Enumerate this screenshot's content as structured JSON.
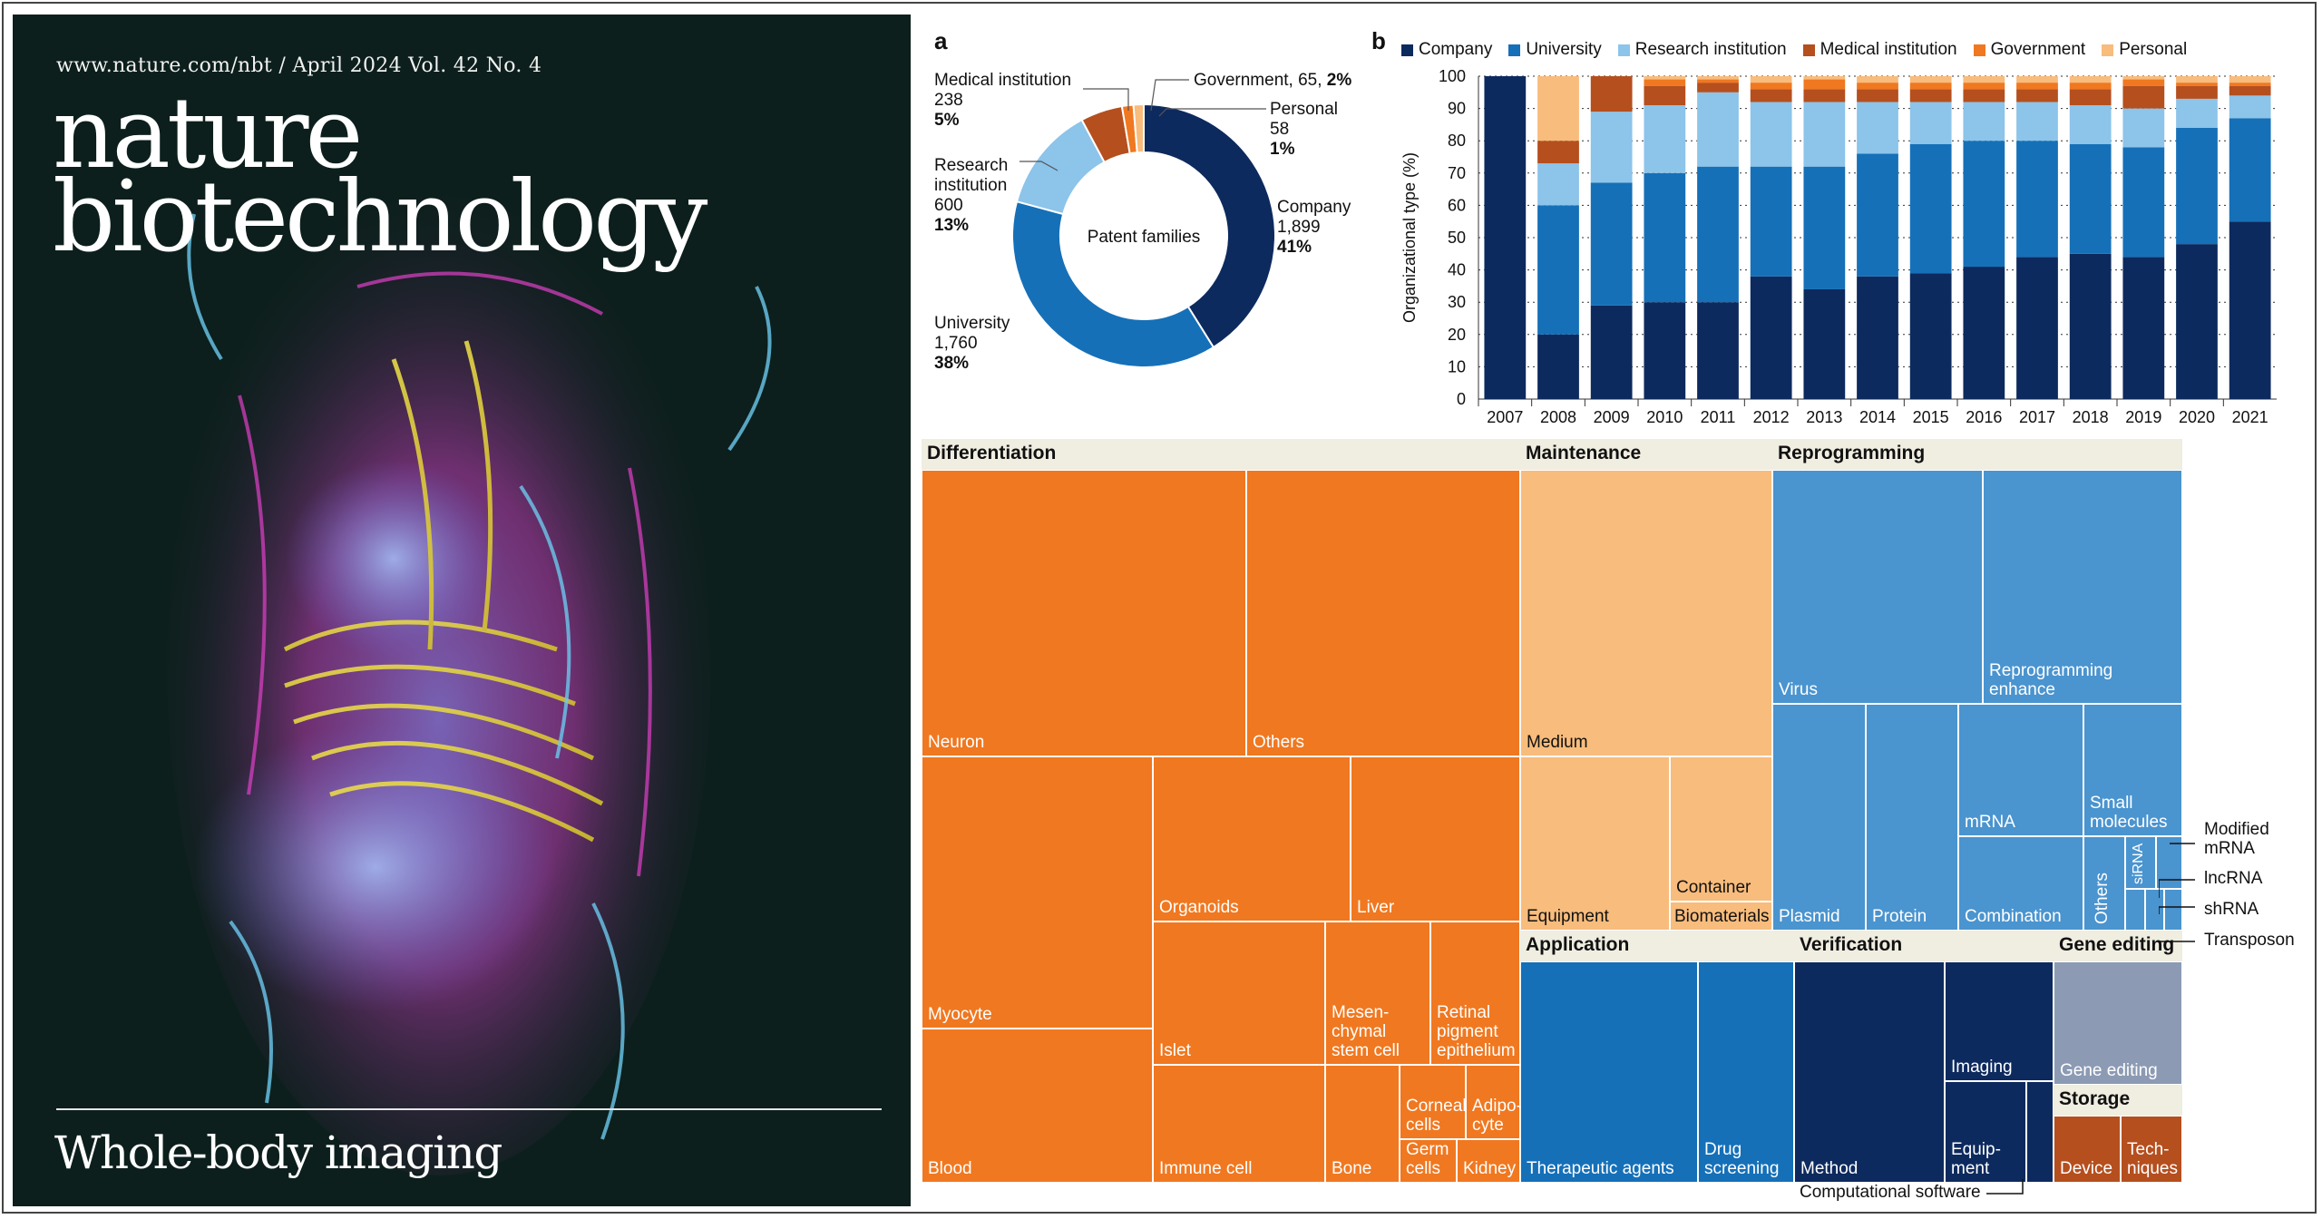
{
  "cover": {
    "issue_line": "www.nature.com/nbt / April 2024 Vol. 42 No. 4",
    "title_line1": "nature",
    "title_line2": "biotechnology",
    "story": "Whole-body imaging"
  },
  "chart_data": [
    {
      "type": "pie",
      "panel": "a",
      "center_label": "Patent families",
      "slices": [
        {
          "name": "Company",
          "value": 1899,
          "percent": "41%",
          "value_label": "1,899",
          "color": "#0d2a5e"
        },
        {
          "name": "University",
          "value": 1760,
          "percent": "38%",
          "value_label": "1,760",
          "color": "#1570b8"
        },
        {
          "name": "Research institution",
          "value": 600,
          "percent": "13%",
          "value_label": "600",
          "color": "#8cc4ea"
        },
        {
          "name": "Medical institution",
          "value": 238,
          "percent": "5%",
          "value_label": "238",
          "color": "#b54f1e"
        },
        {
          "name": "Government",
          "value": 65,
          "percent": "2%",
          "value_label": "65",
          "color": "#f07820"
        },
        {
          "name": "Personal",
          "value": 58,
          "percent": "1%",
          "value_label": "58",
          "color": "#f8bc7c"
        }
      ],
      "labels": {
        "company": [
          "Company",
          "1,899",
          "41%"
        ],
        "university": [
          "University",
          "1,760",
          "38%"
        ],
        "research": [
          "Research",
          "institution",
          "600",
          "13%"
        ],
        "medical": [
          "Medical institution",
          "238",
          "5%"
        ],
        "government": [
          "Government, 65, ",
          "2%"
        ],
        "personal": [
          "Personal",
          "58",
          "1%"
        ]
      }
    },
    {
      "type": "bar",
      "stacked": true,
      "panel": "b",
      "ylabel": "Organizational type (%)",
      "ylim": [
        0,
        100
      ],
      "yticks": [
        0,
        10,
        20,
        30,
        40,
        50,
        60,
        70,
        80,
        90,
        100
      ],
      "grid": "dotted horizontal",
      "legend_position": "top",
      "categories": [
        "2007",
        "2008",
        "2009",
        "2010",
        "2011",
        "2012",
        "2013",
        "2014",
        "2015",
        "2016",
        "2017",
        "2018",
        "2019",
        "2020",
        "2021"
      ],
      "series": [
        {
          "name": "Company",
          "color": "#0d2a5e",
          "values": [
            100,
            20,
            29,
            30,
            30,
            38,
            34,
            38,
            39,
            41,
            44,
            45,
            44,
            48,
            55
          ]
        },
        {
          "name": "University",
          "color": "#1570b8",
          "values": [
            0,
            40,
            38,
            40,
            42,
            34,
            38,
            38,
            40,
            39,
            36,
            34,
            34,
            36,
            32
          ]
        },
        {
          "name": "Research institution",
          "color": "#8cc4ea",
          "values": [
            0,
            13,
            22,
            21,
            23,
            20,
            20,
            16,
            13,
            12,
            12,
            12,
            12,
            9,
            7
          ]
        },
        {
          "name": "Medical institution",
          "color": "#b54f1e",
          "values": [
            0,
            7,
            11,
            6,
            3,
            4,
            4,
            4,
            4,
            4,
            4,
            5,
            7,
            4,
            3
          ]
        },
        {
          "name": "Government",
          "color": "#f07820",
          "values": [
            0,
            0,
            0,
            2,
            1,
            2,
            3,
            2,
            2,
            2,
            2,
            2,
            2,
            1,
            1
          ]
        },
        {
          "name": "Personal",
          "color": "#f8bc7c",
          "values": [
            0,
            20,
            0,
            1,
            1,
            2,
            1,
            2,
            2,
            2,
            2,
            2,
            1,
            2,
            2
          ]
        }
      ]
    },
    {
      "type": "treemap",
      "groups": [
        {
          "name": "Differentiation",
          "color": "#f07820",
          "items": [
            "Neuron",
            "Others",
            "Myocyte",
            "Organoids",
            "Liver",
            "Islet",
            "Mesen-chymal stem cell",
            "Retinal pigment epithelium",
            "Blood",
            "Immune cell",
            "Bone",
            "Corneal cells",
            "Adipo-cyte",
            "Germ cells",
            "Kidney"
          ]
        },
        {
          "name": "Maintenance",
          "color": "#f8bc7c",
          "items": [
            "Medium",
            "Equipment",
            "Container",
            "Biomaterials"
          ]
        },
        {
          "name": "Reprogramming",
          "color": "#4a94cf",
          "items": [
            "Virus",
            "Reprogramming enhance",
            "Plasmid",
            "Protein",
            "mRNA",
            "Small molecules",
            "Combination",
            "Others",
            "siRNA",
            "Modified mRNA",
            "lncRNA",
            "shRNA",
            "Transposon"
          ]
        },
        {
          "name": "Application",
          "color": "#1570b8",
          "items": [
            "Therapeutic agents",
            "Drug screening"
          ]
        },
        {
          "name": "Verification",
          "color": "#0d2a5e",
          "items": [
            "Method",
            "Imaging",
            "Equip-ment",
            "Computational software"
          ]
        },
        {
          "name": "Gene editing",
          "color": "#8c9ab4",
          "items": [
            "Gene editing"
          ]
        },
        {
          "name": "Storage",
          "color": "#b54f1e",
          "items": [
            "Device",
            "Tech-niques"
          ]
        }
      ]
    }
  ],
  "panels": {
    "a": "a",
    "b": "b"
  },
  "treemap_text": {
    "h_diff": "Differentiation",
    "h_maint": "Maintenance",
    "h_reprog": "Reprogramming",
    "h_app": "Application",
    "h_verif": "Verification",
    "h_gene": "Gene editing",
    "h_storage": "Storage",
    "neuron": "Neuron",
    "others_d": "Others",
    "myocyte": "Myocyte",
    "organoids": "Organoids",
    "liver": "Liver",
    "islet": "Islet",
    "mesen": "Mesen-\nchymal\nstem cell",
    "retinal": "Retinal\npigment\nepithelium",
    "blood": "Blood",
    "immune": "Immune cell",
    "bone": "Bone",
    "corneal": "Corneal\ncells",
    "adipo": "Adipo-\ncyte",
    "germ": "Germ\ncells",
    "kidney": "Kidney",
    "medium": "Medium",
    "equipment": "Equipment",
    "container": "Container",
    "biomaterials": "Biomaterials",
    "virus": "Virus",
    "reprog_enh": "Reprogramming\nenhance",
    "plasmid": "Plasmid",
    "protein": "Protein",
    "mrna": "mRNA",
    "small_mol": "Small\nmolecules",
    "combination": "Combination",
    "others_r": "Others",
    "sirna": "siRNA",
    "mod_mrna": "Modified\nmRNA",
    "lncrna": "lncRNA",
    "shrna": "shRNA",
    "transposon": "Transposon",
    "therapeutic": "Therapeutic agents",
    "drug": "Drug\nscreening",
    "method": "Method",
    "imaging": "Imaging",
    "equip": "Equip-\nment",
    "comp_soft": "Computational software",
    "gene_editing": "Gene editing",
    "device": "Device",
    "techniques": "Tech-\nniques"
  }
}
